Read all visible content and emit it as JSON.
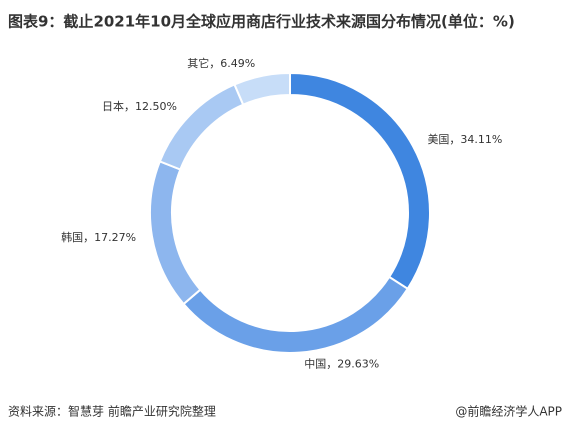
{
  "chart_data": {
    "type": "pie",
    "title": "图表9：截止2021年10月全球应用商店行业技术来源国分布情况(单位：%)",
    "values": [
      34.11,
      29.63,
      17.27,
      12.5,
      6.49
    ],
    "value_labels": [
      "美国，34.11%",
      "中国，29.63%",
      "韩国，17.27%",
      "日本，12.50%",
      "其它，6.49%"
    ],
    "colors": [
      "#3f86e0",
      "#6aa0e8",
      "#8db6ee",
      "#a9c9f3",
      "#c7ddf8"
    ],
    "source": "资料来源：智慧芽 前瞻产业研究院整理",
    "credit": "@前瞻经济学人APP"
  }
}
